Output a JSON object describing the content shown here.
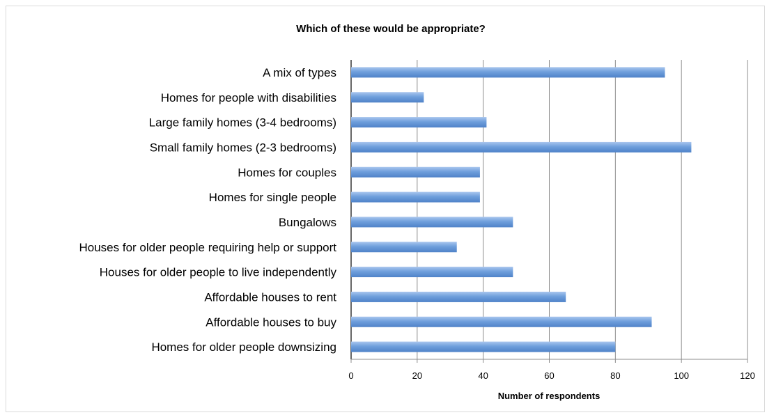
{
  "chart_data": {
    "type": "bar",
    "orientation": "horizontal",
    "title": "Which of these would be appropriate?",
    "xlabel": "Number of respondents",
    "ylabel": "",
    "xlim": [
      0,
      120
    ],
    "xticks": [
      0,
      20,
      40,
      60,
      80,
      100,
      120
    ],
    "grid": true,
    "legend": "none",
    "bar_color": "#6f9fdc",
    "categories": [
      "A mix of types",
      "Homes for people with disabilities",
      "Large family homes (3-4 bedrooms)",
      "Small family homes (2-3 bedrooms)",
      "Homes for couples",
      "Homes for single people",
      "Bungalows",
      "Houses for older people requiring help or support",
      "Houses for older people to live independently",
      "Affordable houses to rent",
      "Affordable houses to buy",
      "Homes for older people downsizing"
    ],
    "values": [
      95,
      22,
      41,
      103,
      39,
      39,
      49,
      32,
      49,
      65,
      91,
      80
    ]
  }
}
